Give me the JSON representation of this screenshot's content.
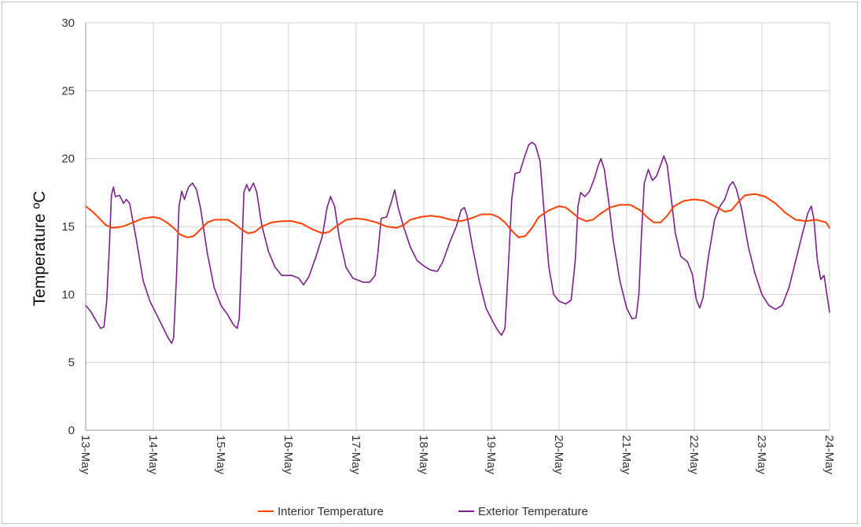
{
  "chart_data": {
    "type": "line",
    "ylabel": "Temperature ºC",
    "ylim": [
      0,
      30
    ],
    "yticks": [
      0,
      5,
      10,
      15,
      20,
      25,
      30
    ],
    "x_tick_labels": [
      "13-May",
      "14-May",
      "15-May",
      "16-May",
      "17-May",
      "18-May",
      "19-May",
      "20-May",
      "21-May",
      "22-May",
      "23-May",
      "24-May"
    ],
    "grid": true,
    "legend_position": "bottom",
    "x_units": "days after 13-May 00:00",
    "series": [
      {
        "name": "Interior Temperature",
        "color": "#ff4000",
        "points": [
          [
            0.0,
            16.5
          ],
          [
            0.1,
            16.1
          ],
          [
            0.2,
            15.6
          ],
          [
            0.3,
            15.1
          ],
          [
            0.4,
            14.9
          ],
          [
            0.55,
            15.0
          ],
          [
            0.7,
            15.3
          ],
          [
            0.85,
            15.6
          ],
          [
            1.0,
            15.7
          ],
          [
            1.1,
            15.6
          ],
          [
            1.2,
            15.3
          ],
          [
            1.3,
            14.9
          ],
          [
            1.4,
            14.4
          ],
          [
            1.5,
            14.2
          ],
          [
            1.6,
            14.3
          ],
          [
            1.7,
            14.8
          ],
          [
            1.8,
            15.3
          ],
          [
            1.9,
            15.5
          ],
          [
            2.1,
            15.5
          ],
          [
            2.2,
            15.2
          ],
          [
            2.3,
            14.8
          ],
          [
            2.4,
            14.5
          ],
          [
            2.5,
            14.6
          ],
          [
            2.6,
            15.0
          ],
          [
            2.75,
            15.3
          ],
          [
            2.9,
            15.4
          ],
          [
            3.05,
            15.4
          ],
          [
            3.2,
            15.2
          ],
          [
            3.35,
            14.8
          ],
          [
            3.5,
            14.5
          ],
          [
            3.6,
            14.6
          ],
          [
            3.7,
            15.0
          ],
          [
            3.85,
            15.5
          ],
          [
            4.0,
            15.6
          ],
          [
            4.15,
            15.5
          ],
          [
            4.3,
            15.3
          ],
          [
            4.45,
            15.0
          ],
          [
            4.6,
            14.9
          ],
          [
            4.7,
            15.1
          ],
          [
            4.8,
            15.5
          ],
          [
            4.95,
            15.7
          ],
          [
            5.1,
            15.8
          ],
          [
            5.25,
            15.7
          ],
          [
            5.4,
            15.5
          ],
          [
            5.55,
            15.4
          ],
          [
            5.7,
            15.6
          ],
          [
            5.85,
            15.9
          ],
          [
            6.0,
            15.9
          ],
          [
            6.1,
            15.7
          ],
          [
            6.2,
            15.3
          ],
          [
            6.3,
            14.7
          ],
          [
            6.4,
            14.2
          ],
          [
            6.5,
            14.3
          ],
          [
            6.6,
            14.9
          ],
          [
            6.7,
            15.7
          ],
          [
            6.85,
            16.2
          ],
          [
            7.0,
            16.5
          ],
          [
            7.1,
            16.4
          ],
          [
            7.2,
            16.0
          ],
          [
            7.3,
            15.6
          ],
          [
            7.4,
            15.4
          ],
          [
            7.5,
            15.5
          ],
          [
            7.6,
            15.9
          ],
          [
            7.75,
            16.4
          ],
          [
            7.9,
            16.6
          ],
          [
            8.05,
            16.6
          ],
          [
            8.2,
            16.2
          ],
          [
            8.3,
            15.7
          ],
          [
            8.4,
            15.3
          ],
          [
            8.5,
            15.3
          ],
          [
            8.6,
            15.8
          ],
          [
            8.7,
            16.5
          ],
          [
            8.85,
            16.9
          ],
          [
            9.0,
            17.0
          ],
          [
            9.15,
            16.9
          ],
          [
            9.3,
            16.5
          ],
          [
            9.45,
            16.1
          ],
          [
            9.55,
            16.2
          ],
          [
            9.65,
            16.8
          ],
          [
            9.75,
            17.3
          ],
          [
            9.9,
            17.4
          ],
          [
            10.05,
            17.2
          ],
          [
            10.2,
            16.7
          ],
          [
            10.35,
            16.0
          ],
          [
            10.5,
            15.5
          ],
          [
            10.65,
            15.4
          ],
          [
            10.8,
            15.5
          ],
          [
            10.95,
            15.3
          ],
          [
            11.0,
            14.9
          ]
        ]
      },
      {
        "name": "Exterior Temperature",
        "color": "#7b1f8c",
        "points": [
          [
            0.0,
            9.2
          ],
          [
            0.08,
            8.7
          ],
          [
            0.16,
            8.0
          ],
          [
            0.22,
            7.5
          ],
          [
            0.27,
            7.6
          ],
          [
            0.31,
            9.5
          ],
          [
            0.35,
            13.5
          ],
          [
            0.38,
            17.3
          ],
          [
            0.41,
            17.9
          ],
          [
            0.44,
            17.2
          ],
          [
            0.5,
            17.3
          ],
          [
            0.56,
            16.7
          ],
          [
            0.6,
            17.0
          ],
          [
            0.65,
            16.7
          ],
          [
            0.75,
            14.0
          ],
          [
            0.85,
            11.0
          ],
          [
            0.95,
            9.5
          ],
          [
            1.05,
            8.5
          ],
          [
            1.15,
            7.5
          ],
          [
            1.22,
            6.8
          ],
          [
            1.27,
            6.4
          ],
          [
            1.3,
            6.8
          ],
          [
            1.34,
            11.0
          ],
          [
            1.38,
            16.5
          ],
          [
            1.42,
            17.6
          ],
          [
            1.46,
            17.0
          ],
          [
            1.52,
            17.9
          ],
          [
            1.58,
            18.2
          ],
          [
            1.64,
            17.7
          ],
          [
            1.7,
            16.3
          ],
          [
            1.8,
            13.0
          ],
          [
            1.9,
            10.5
          ],
          [
            2.0,
            9.2
          ],
          [
            2.1,
            8.5
          ],
          [
            2.18,
            7.8
          ],
          [
            2.24,
            7.5
          ],
          [
            2.27,
            8.2
          ],
          [
            2.3,
            12.0
          ],
          [
            2.34,
            17.5
          ],
          [
            2.38,
            18.1
          ],
          [
            2.42,
            17.6
          ],
          [
            2.48,
            18.2
          ],
          [
            2.53,
            17.5
          ],
          [
            2.6,
            15.2
          ],
          [
            2.7,
            13.2
          ],
          [
            2.8,
            12.0
          ],
          [
            2.9,
            11.4
          ],
          [
            3.05,
            11.4
          ],
          [
            3.15,
            11.2
          ],
          [
            3.22,
            10.7
          ],
          [
            3.3,
            11.3
          ],
          [
            3.4,
            12.7
          ],
          [
            3.5,
            14.3
          ],
          [
            3.57,
            16.4
          ],
          [
            3.62,
            17.2
          ],
          [
            3.68,
            16.5
          ],
          [
            3.75,
            14.2
          ],
          [
            3.85,
            12.0
          ],
          [
            3.95,
            11.2
          ],
          [
            4.1,
            10.9
          ],
          [
            4.2,
            10.9
          ],
          [
            4.28,
            11.4
          ],
          [
            4.32,
            13.0
          ],
          [
            4.37,
            15.6
          ],
          [
            4.45,
            15.7
          ],
          [
            4.52,
            16.8
          ],
          [
            4.57,
            17.7
          ],
          [
            4.62,
            16.4
          ],
          [
            4.7,
            15.0
          ],
          [
            4.8,
            13.5
          ],
          [
            4.9,
            12.5
          ],
          [
            5.0,
            12.1
          ],
          [
            5.1,
            11.8
          ],
          [
            5.2,
            11.7
          ],
          [
            5.28,
            12.4
          ],
          [
            5.38,
            13.8
          ],
          [
            5.48,
            15.0
          ],
          [
            5.55,
            16.2
          ],
          [
            5.6,
            16.4
          ],
          [
            5.64,
            15.8
          ],
          [
            5.72,
            13.5
          ],
          [
            5.82,
            11.0
          ],
          [
            5.92,
            9.0
          ],
          [
            6.02,
            8.0
          ],
          [
            6.1,
            7.3
          ],
          [
            6.15,
            7.0
          ],
          [
            6.2,
            7.5
          ],
          [
            6.25,
            12.0
          ],
          [
            6.3,
            17.0
          ],
          [
            6.35,
            18.9
          ],
          [
            6.42,
            19.0
          ],
          [
            6.48,
            20.0
          ],
          [
            6.55,
            21.0
          ],
          [
            6.6,
            21.2
          ],
          [
            6.65,
            21.0
          ],
          [
            6.72,
            19.8
          ],
          [
            6.78,
            16.0
          ],
          [
            6.85,
            12.0
          ],
          [
            6.92,
            10.0
          ],
          [
            7.0,
            9.5
          ],
          [
            7.1,
            9.3
          ],
          [
            7.18,
            9.6
          ],
          [
            7.24,
            12.5
          ],
          [
            7.28,
            16.5
          ],
          [
            7.32,
            17.5
          ],
          [
            7.38,
            17.2
          ],
          [
            7.45,
            17.6
          ],
          [
            7.52,
            18.5
          ],
          [
            7.58,
            19.5
          ],
          [
            7.62,
            20.0
          ],
          [
            7.67,
            19.2
          ],
          [
            7.73,
            17.0
          ],
          [
            7.8,
            14.0
          ],
          [
            7.9,
            11.0
          ],
          [
            8.0,
            9.0
          ],
          [
            8.08,
            8.2
          ],
          [
            8.14,
            8.3
          ],
          [
            8.18,
            10.0
          ],
          [
            8.22,
            14.5
          ],
          [
            8.26,
            18.2
          ],
          [
            8.32,
            19.2
          ],
          [
            8.38,
            18.4
          ],
          [
            8.44,
            18.7
          ],
          [
            8.5,
            19.5
          ],
          [
            8.55,
            20.2
          ],
          [
            8.6,
            19.5
          ],
          [
            8.66,
            17.0
          ],
          [
            8.72,
            14.5
          ],
          [
            8.8,
            12.8
          ],
          [
            8.9,
            12.4
          ],
          [
            8.97,
            11.5
          ],
          [
            9.03,
            9.6
          ],
          [
            9.08,
            9.0
          ],
          [
            9.13,
            9.8
          ],
          [
            9.2,
            12.5
          ],
          [
            9.3,
            15.5
          ],
          [
            9.38,
            16.5
          ],
          [
            9.45,
            17.0
          ],
          [
            9.52,
            18.0
          ],
          [
            9.57,
            18.3
          ],
          [
            9.62,
            17.8
          ],
          [
            9.7,
            16.3
          ],
          [
            9.8,
            13.5
          ],
          [
            9.9,
            11.5
          ],
          [
            10.0,
            10.0
          ],
          [
            10.1,
            9.2
          ],
          [
            10.2,
            8.9
          ],
          [
            10.3,
            9.2
          ],
          [
            10.4,
            10.5
          ],
          [
            10.5,
            12.5
          ],
          [
            10.6,
            14.5
          ],
          [
            10.68,
            16.0
          ],
          [
            10.73,
            16.5
          ],
          [
            10.77,
            15.5
          ],
          [
            10.82,
            12.5
          ],
          [
            10.87,
            11.1
          ],
          [
            10.92,
            11.4
          ],
          [
            10.96,
            10.0
          ],
          [
            11.0,
            8.7
          ]
        ]
      }
    ]
  }
}
